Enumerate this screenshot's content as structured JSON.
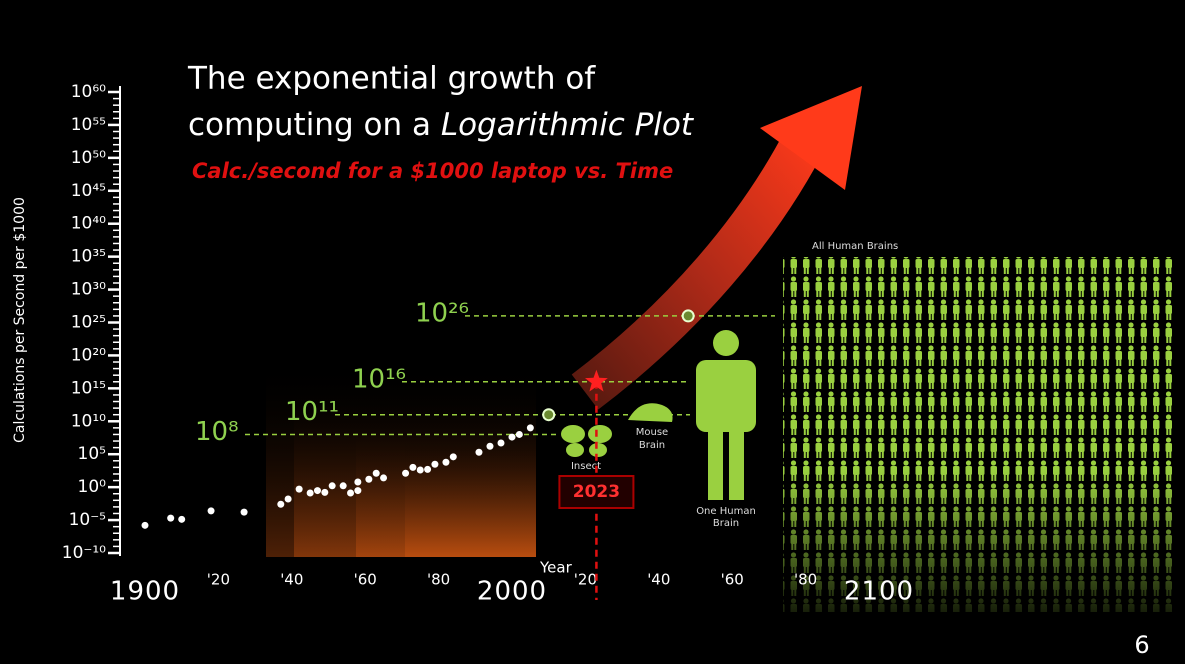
{
  "chart_data": {
    "type": "scatter",
    "title": [
      "The exponential growth of",
      "computing on a ",
      "Logarithmic Plot"
    ],
    "subtitle": "Calc./second for a $1000 laptop vs. Time",
    "y_label": "Calculations per Second per $1000",
    "x_label": "Year",
    "log_y": true,
    "xlim": [
      1900,
      2100
    ],
    "ylim": [
      1e-10,
      1e+60
    ],
    "xticks": [
      1900,
      {
        "value": 1920,
        "label": "'20"
      },
      {
        "value": 1940,
        "label": "'40"
      },
      {
        "value": 1960,
        "label": "'60"
      },
      {
        "value": 1980,
        "label": "'80"
      },
      2000,
      {
        "value": 2020,
        "label": "'20"
      },
      {
        "value": 2040,
        "label": "'40"
      },
      {
        "value": 2060,
        "label": "'60"
      },
      {
        "value": 2080,
        "label": "'80"
      },
      2100
    ],
    "yticks": [
      {
        "value": 1e-10,
        "label": "10⁻¹⁰"
      },
      {
        "value": 1e-05,
        "label": "10⁻⁵"
      },
      {
        "value": 1,
        "label": "10⁰"
      },
      {
        "value": 100000.0,
        "label": "10⁵"
      },
      {
        "value": 10000000000.0,
        "label": "10¹⁰"
      },
      {
        "value": 1000000000000000.0,
        "label": "10¹⁵"
      },
      {
        "value": 1e+20,
        "label": "10²⁰"
      },
      {
        "value": 1e+25,
        "label": "10²⁵"
      },
      {
        "value": 1e+30,
        "label": "10³⁰"
      },
      {
        "value": 1e+35,
        "label": "10³⁵"
      },
      {
        "value": 1e+40,
        "label": "10⁴⁰"
      },
      {
        "value": 1e+45,
        "label": "10⁴⁵"
      },
      {
        "value": 1e+50,
        "label": "10⁵⁰"
      },
      {
        "value": 1e+55,
        "label": "10⁵⁵"
      },
      {
        "value": 1e+60,
        "label": "10⁶⁰"
      }
    ],
    "series": [
      {
        "color": "#ffffff",
        "x": [
          1900,
          1907,
          1910,
          1918,
          1927,
          1937,
          1939,
          1942,
          1945,
          1947,
          1949,
          1951,
          1954,
          1956,
          1958,
          1958,
          1961,
          1963,
          1965,
          1971,
          1973,
          1975,
          1977,
          1979,
          1982,
          1984,
          1991,
          1994,
          1997,
          2000,
          2002,
          2005
        ],
        "values": [
          1.6e-06,
          2e-05,
          1.3e-05,
          0.00025,
          0.00016,
          0.0025,
          0.016,
          0.5,
          0.13,
          0.3,
          0.16,
          1.6,
          1.6,
          0.13,
          0.3,
          6,
          16,
          130,
          25,
          130,
          1000,
          400,
          500,
          3000,
          6000,
          40000,
          200000.0,
          1600000.0,
          5000000.0,
          40000000.0,
          100000000.0,
          1000000000.0
        ]
      }
    ],
    "levels": [
      {
        "value": 100000000.0,
        "label": "10⁸"
      },
      {
        "value": 100000000000.0,
        "label": "10¹¹"
      },
      {
        "value": 1e+16,
        "label": "10¹⁶"
      },
      {
        "value": 1e+26,
        "label": "10²⁶"
      }
    ],
    "milestones": [
      {
        "x": 2010,
        "y": 100000000000.0
      },
      {
        "x": 2023,
        "y": 1e+16
      },
      {
        "x": 2048,
        "y": 1e+26
      }
    ],
    "current_year": "2023",
    "brain_labels": {
      "insect": "Insect",
      "mouse": [
        "Mouse",
        "Brain"
      ],
      "human": [
        "One Human",
        "Brain"
      ],
      "all": "All Human Brains"
    }
  },
  "slide": {
    "page_number": "6"
  }
}
